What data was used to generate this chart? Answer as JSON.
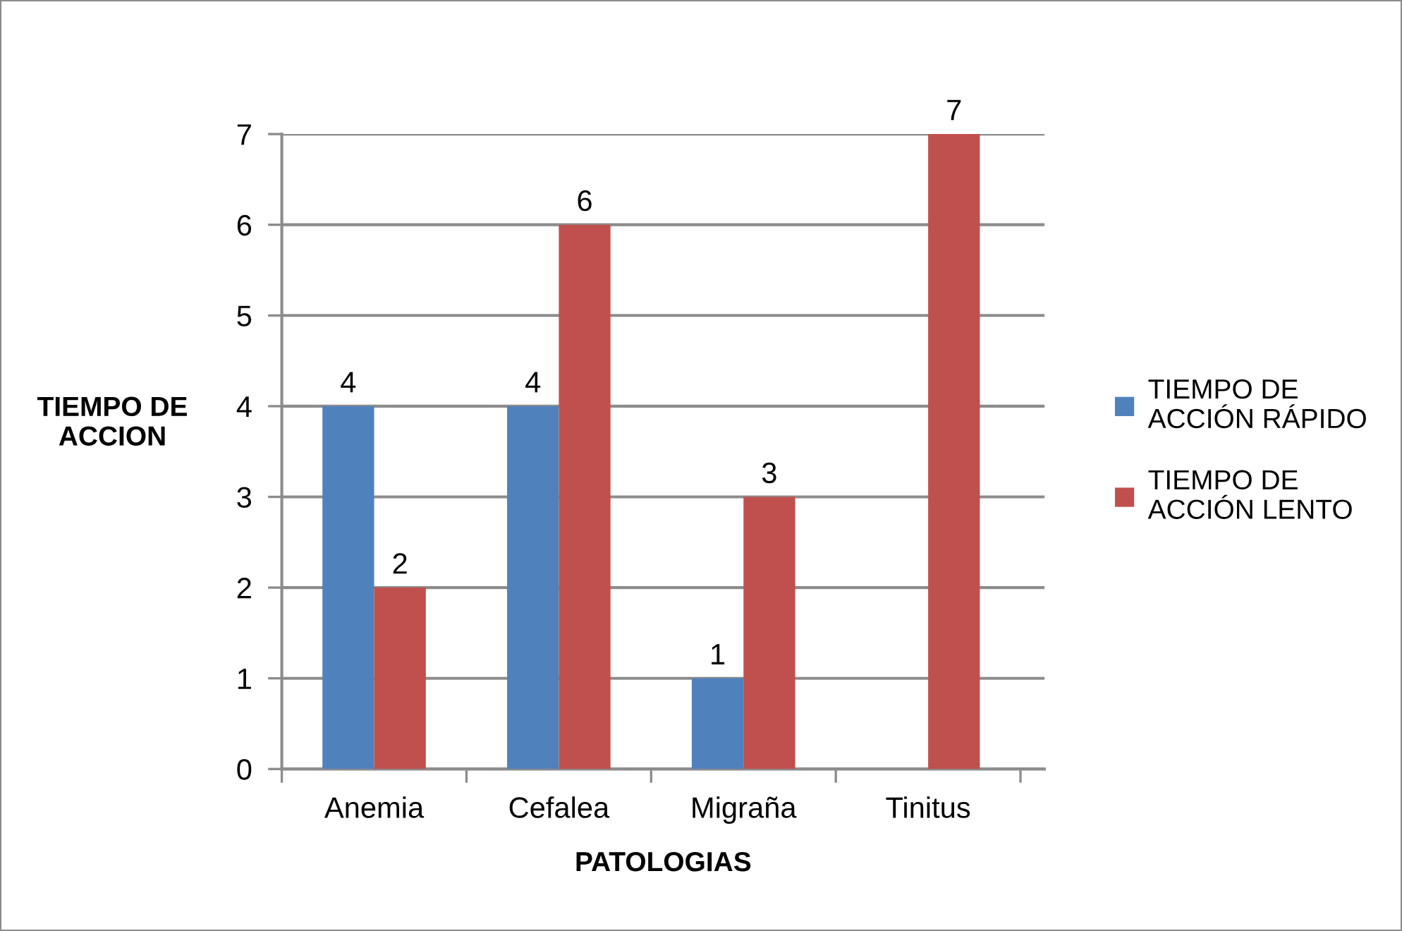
{
  "chart_data": {
    "type": "bar",
    "xlabel": "PATOLOGIAS",
    "ylabel": "TIEMPO DE\nACCION",
    "categories": [
      "Anemia",
      "Cefalea",
      "Migraña",
      "Tinitus"
    ],
    "series": [
      {
        "name": "TIEMPO DE\nACCIÓN RÁPIDO",
        "color": "#4f81bd",
        "values": [
          4,
          4,
          1,
          null
        ]
      },
      {
        "name": "TIEMPO DE\nACCIÓN LENTO",
        "color": "#c0504d",
        "values": [
          2,
          6,
          3,
          7
        ]
      }
    ],
    "ylim": [
      0,
      7
    ],
    "yticks": [
      0,
      1,
      2,
      3,
      4,
      5,
      6,
      7
    ],
    "grid": "y",
    "legend": "right",
    "data_labels": true
  }
}
